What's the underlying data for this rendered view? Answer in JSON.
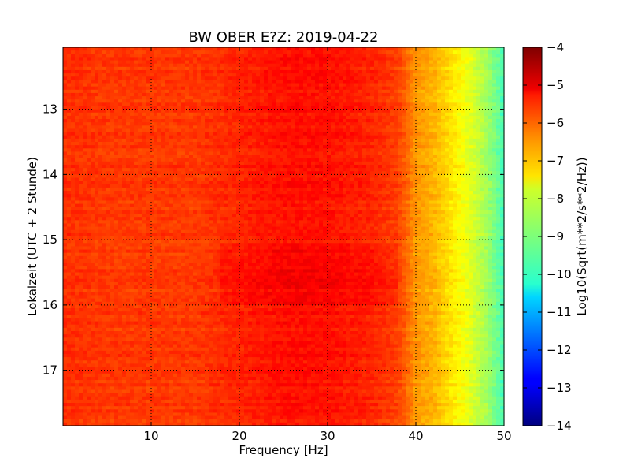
{
  "chart_data": {
    "type": "heatmap",
    "title": "BW OBER E?Z: 2019-04-22",
    "xlabel": "Frequency [Hz]",
    "ylabel": "Lokalzeit (UTC + 2 Stunde)",
    "xlim": [
      0,
      50
    ],
    "ylim": [
      17.85,
      12.05
    ],
    "y_inverted": true,
    "grid": true,
    "x_ticks": [
      10,
      20,
      30,
      40,
      50
    ],
    "x_tick_labels": [
      "10",
      "20",
      "30",
      "40",
      "50"
    ],
    "y_ticks": [
      13,
      14,
      15,
      16,
      17
    ],
    "y_tick_labels": [
      "13",
      "14",
      "15",
      "16",
      "17"
    ],
    "colorbar": {
      "label": "Log10(Sqrt(m**2/s**2/Hz))",
      "colormap": "jet",
      "range": [
        -14,
        -4
      ],
      "ticks": [
        -4,
        -5,
        -6,
        -7,
        -8,
        -9,
        -10,
        -11,
        -12,
        -13,
        -14
      ],
      "tick_labels": [
        "−4",
        "−5",
        "−6",
        "−7",
        "−8",
        "−9",
        "−10",
        "−11",
        "−12",
        "−13",
        "−14"
      ]
    },
    "spectrum_profile": {
      "frequency_hz": [
        0,
        5,
        10,
        15,
        20,
        25,
        30,
        35,
        38,
        40,
        42,
        44,
        46,
        48,
        50
      ],
      "log_amplitude": [
        -5.7,
        -5.8,
        -5.8,
        -5.8,
        -5.6,
        -5.4,
        -5.4,
        -5.6,
        -5.9,
        -6.7,
        -7.0,
        -7.5,
        -8.0,
        -8.6,
        -9.6
      ]
    },
    "elevated_period": {
      "start_hour": 15.05,
      "end_hour": 16.0,
      "offset": 0.2
    }
  }
}
